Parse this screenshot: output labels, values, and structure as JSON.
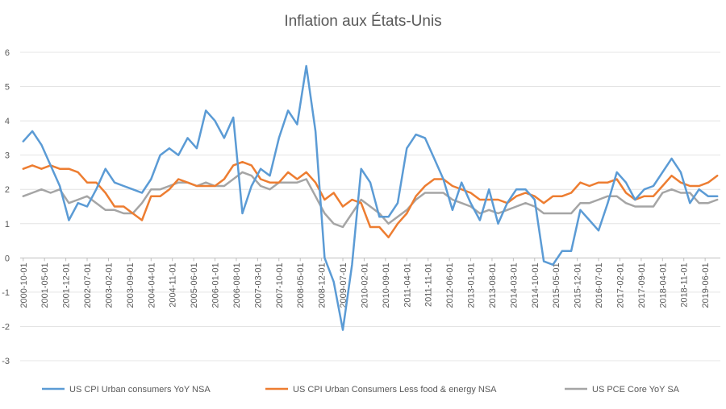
{
  "chart_data": {
    "type": "line",
    "title": "Inflation aux États-Unis",
    "xlabel": "",
    "ylabel": "",
    "ylim": [
      -3,
      6
    ],
    "yticks": [
      -3,
      -2,
      -1,
      0,
      1,
      2,
      3,
      4,
      5,
      6
    ],
    "grid": true,
    "legend_position": "bottom",
    "xticks": [
      "2000-10-01",
      "2001-05-01",
      "2001-12-01",
      "2002-07-01",
      "2003-02-01",
      "2003-09-01",
      "2004-04-01",
      "2004-11-01",
      "2005-06-01",
      "2006-01-01",
      "2006-08-01",
      "2007-03-01",
      "2007-10-01",
      "2008-05-01",
      "2008-12-01",
      "2009-07-01",
      "2010-02-01",
      "2010-09-01",
      "2011-04-01",
      "2011-11-01",
      "2012-06-01",
      "2013-01-01",
      "2013-08-01",
      "2014-03-01",
      "2014-10-01",
      "2015-05-01",
      "2015-12-01",
      "2016-07-01",
      "2017-02-01",
      "2017-09-01",
      "2018-04-01",
      "2018-11-01",
      "2019-06-01"
    ],
    "x": [
      "2000-10",
      "2001-01",
      "2001-04",
      "2001-07",
      "2001-10",
      "2002-01",
      "2002-04",
      "2002-07",
      "2002-10",
      "2003-01",
      "2003-04",
      "2003-07",
      "2003-10",
      "2004-01",
      "2004-04",
      "2004-07",
      "2004-10",
      "2005-01",
      "2005-04",
      "2005-07",
      "2005-10",
      "2006-01",
      "2006-04",
      "2006-07",
      "2006-10",
      "2007-01",
      "2007-04",
      "2007-07",
      "2007-10",
      "2008-01",
      "2008-04",
      "2008-07",
      "2008-10",
      "2009-01",
      "2009-04",
      "2009-07",
      "2009-10",
      "2010-01",
      "2010-04",
      "2010-07",
      "2010-10",
      "2011-01",
      "2011-04",
      "2011-07",
      "2011-10",
      "2012-01",
      "2012-04",
      "2012-07",
      "2012-10",
      "2013-01",
      "2013-04",
      "2013-07",
      "2013-10",
      "2014-01",
      "2014-04",
      "2014-07",
      "2014-10",
      "2015-01",
      "2015-04",
      "2015-07",
      "2015-10",
      "2016-01",
      "2016-04",
      "2016-07",
      "2016-10",
      "2017-01",
      "2017-04",
      "2017-07",
      "2017-10",
      "2018-01",
      "2018-04",
      "2018-07",
      "2018-10",
      "2019-01",
      "2019-04",
      "2019-07",
      "2019-10"
    ],
    "series": [
      {
        "name": "US CPI Urban consumers YoY NSA",
        "color": "#5B9BD5",
        "values": [
          3.4,
          3.7,
          3.3,
          2.7,
          2.1,
          1.1,
          1.6,
          1.5,
          2.0,
          2.6,
          2.2,
          2.1,
          2.0,
          1.9,
          2.3,
          3.0,
          3.2,
          3.0,
          3.5,
          3.2,
          4.3,
          4.0,
          3.5,
          4.1,
          1.3,
          2.1,
          2.6,
          2.4,
          3.5,
          4.3,
          3.9,
          5.6,
          3.7,
          0.0,
          -0.7,
          -2.1,
          -0.2,
          2.6,
          2.2,
          1.2,
          1.2,
          1.6,
          3.2,
          3.6,
          3.5,
          2.9,
          2.3,
          1.4,
          2.2,
          1.6,
          1.1,
          2.0,
          1.0,
          1.6,
          2.0,
          2.0,
          1.7,
          -0.1,
          -0.2,
          0.2,
          0.2,
          1.4,
          1.1,
          0.8,
          1.6,
          2.5,
          2.2,
          1.7,
          2.0,
          2.1,
          2.5,
          2.9,
          2.5,
          1.6,
          2.0,
          1.8,
          1.8
        ]
      },
      {
        "name": "US CPI Urban Consumers Less food & energy NSA",
        "color": "#ED7D31",
        "values": [
          2.6,
          2.7,
          2.6,
          2.7,
          2.6,
          2.6,
          2.5,
          2.2,
          2.2,
          1.9,
          1.5,
          1.5,
          1.3,
          1.1,
          1.8,
          1.8,
          2.0,
          2.3,
          2.2,
          2.1,
          2.1,
          2.1,
          2.3,
          2.7,
          2.8,
          2.7,
          2.3,
          2.2,
          2.2,
          2.5,
          2.3,
          2.5,
          2.2,
          1.7,
          1.9,
          1.5,
          1.7,
          1.6,
          0.9,
          0.9,
          0.6,
          1.0,
          1.3,
          1.8,
          2.1,
          2.3,
          2.3,
          2.1,
          2.0,
          1.9,
          1.7,
          1.7,
          1.7,
          1.6,
          1.8,
          1.9,
          1.8,
          1.6,
          1.8,
          1.8,
          1.9,
          2.2,
          2.1,
          2.2,
          2.2,
          2.3,
          1.9,
          1.7,
          1.8,
          1.8,
          2.1,
          2.4,
          2.2,
          2.1,
          2.1,
          2.2,
          2.4
        ]
      },
      {
        "name": "US PCE Core YoY SA",
        "color": "#A5A5A5",
        "values": [
          1.8,
          1.9,
          2.0,
          1.9,
          2.0,
          1.6,
          1.7,
          1.8,
          1.6,
          1.4,
          1.4,
          1.3,
          1.3,
          1.6,
          2.0,
          2.0,
          2.1,
          2.2,
          2.2,
          2.1,
          2.2,
          2.1,
          2.1,
          2.3,
          2.5,
          2.4,
          2.1,
          2.0,
          2.2,
          2.2,
          2.2,
          2.3,
          1.8,
          1.3,
          1.0,
          0.9,
          1.3,
          1.7,
          1.5,
          1.3,
          1.0,
          1.2,
          1.4,
          1.7,
          1.9,
          1.9,
          1.9,
          1.7,
          1.6,
          1.5,
          1.3,
          1.4,
          1.3,
          1.4,
          1.5,
          1.6,
          1.5,
          1.3,
          1.3,
          1.3,
          1.3,
          1.6,
          1.6,
          1.7,
          1.8,
          1.8,
          1.6,
          1.5,
          1.5,
          1.5,
          1.9,
          2.0,
          1.9,
          1.9,
          1.6,
          1.6,
          1.7
        ]
      }
    ]
  }
}
